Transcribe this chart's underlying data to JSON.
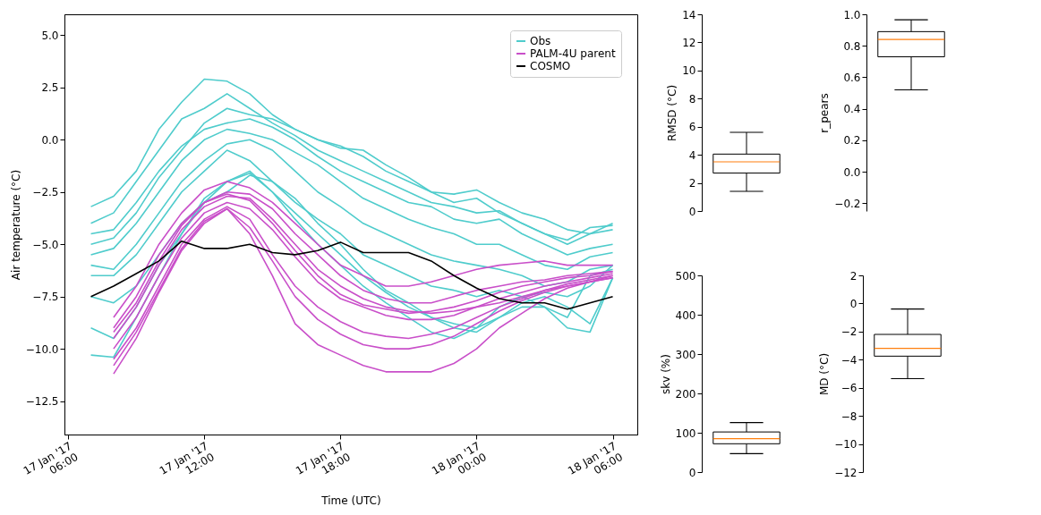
{
  "chart_data": [
    {
      "type": "line",
      "xlabel": "Time (UTC)",
      "ylabel": "Air temperature (°C)",
      "legend": "top right",
      "grid": false,
      "marker": "none",
      "line_style": "solid",
      "xlim": [
        "2017-01-17T05:50",
        "2017-01-18T07:05"
      ],
      "xticks": [
        {
          "value": "2017-01-17T06:00",
          "label": "17 Jan '17\n06:00"
        },
        {
          "value": "2017-01-17T12:00",
          "label": "17 Jan '17\n12:00"
        },
        {
          "value": "2017-01-17T18:00",
          "label": "17 Jan '17\n18:00"
        },
        {
          "value": "2017-01-18T00:00",
          "label": "18 Jan '17\n00:00"
        },
        {
          "value": "2017-01-18T06:00",
          "label": "18 Jan '17\n06:00"
        }
      ],
      "ylim": [
        -14.1,
        6
      ],
      "yticks": [
        {
          "value": 5,
          "label": "5.0"
        },
        {
          "value": 2.5,
          "label": "2.5"
        },
        {
          "value": 0,
          "label": "0.0"
        },
        {
          "value": -2.5,
          "label": "−2.5"
        },
        {
          "value": -5,
          "label": "−5.0"
        },
        {
          "value": -7.5,
          "label": "−7.5"
        },
        {
          "value": -10,
          "label": "−10.0"
        },
        {
          "value": -12.5,
          "label": "−12.5"
        }
      ],
      "x": [
        "2017-01-17T07:00",
        "2017-01-17T08:00",
        "2017-01-17T09:00",
        "2017-01-17T10:00",
        "2017-01-17T11:00",
        "2017-01-17T12:00",
        "2017-01-17T13:00",
        "2017-01-17T14:00",
        "2017-01-17T15:00",
        "2017-01-17T16:00",
        "2017-01-17T17:00",
        "2017-01-17T18:00",
        "2017-01-17T19:00",
        "2017-01-17T20:00",
        "2017-01-17T21:00",
        "2017-01-17T22:00",
        "2017-01-17T23:00",
        "2017-01-18T00:00",
        "2017-01-18T01:00",
        "2017-01-18T02:00",
        "2017-01-18T03:00",
        "2017-01-18T04:00",
        "2017-01-18T05:00",
        "2017-01-18T06:00"
      ],
      "series": [
        {
          "name": "Obs",
          "color": "#4fcccc",
          "values": [
            -3.2,
            -2.7,
            -1.5,
            0.5,
            1.8,
            2.9,
            2.8,
            2.2,
            1.2,
            0.5,
            0,
            -0.4,
            -0.5,
            -1.2,
            -1.8,
            -2.5,
            -2.6,
            -2.4,
            -3.0,
            -3.5,
            -3.8,
            -4.3,
            -4.5,
            -4.3
          ]
        },
        {
          "color": "#4fcccc",
          "values": [
            -4.0,
            -3.5,
            -2.0,
            -0.5,
            1.0,
            1.5,
            2.2,
            1.5,
            0.8,
            0.2,
            -0.5,
            -1.0,
            -1.5,
            -2.0,
            -2.5,
            -3.0,
            -3.2,
            -3.5,
            -3.4,
            -4.0,
            -4.5,
            -4.8,
            -4.2,
            -4.1
          ]
        },
        {
          "color": "#4fcccc",
          "values": [
            -4.5,
            -4.3,
            -3.0,
            -1.5,
            -0.3,
            0.5,
            0.8,
            1.0,
            0.6,
            0,
            -0.8,
            -1.5,
            -2.0,
            -2.5,
            -3.0,
            -3.2,
            -3.8,
            -4.0,
            -3.8,
            -4.5,
            -5.0,
            -5.5,
            -5.2,
            -5.0
          ]
        },
        {
          "color": "#4fcccc",
          "values": [
            -5.5,
            -5.2,
            -4.0,
            -2.5,
            -1.0,
            0,
            0.5,
            0.3,
            0,
            -0.6,
            -1.2,
            -2.0,
            -2.8,
            -3.3,
            -3.8,
            -4.2,
            -4.5,
            -5.0,
            -5.0,
            -5.5,
            -6.0,
            -6.2,
            -5.6,
            -5.4
          ]
        },
        {
          "color": "#4fcccc",
          "values": [
            -6.0,
            -6.2,
            -5.0,
            -3.5,
            -2.0,
            -1.0,
            -0.2,
            0,
            -0.5,
            -1.5,
            -2.5,
            -3.2,
            -4.0,
            -4.5,
            -5.0,
            -5.5,
            -5.8,
            -6.0,
            -6.2,
            -6.5,
            -7.0,
            -6.8,
            -6.2,
            -6.0
          ]
        },
        {
          "color": "#4fcccc",
          "values": [
            -6.5,
            -6.5,
            -5.5,
            -4.0,
            -2.5,
            -1.5,
            -0.5,
            -1.0,
            -2.0,
            -3.0,
            -3.8,
            -4.5,
            -5.5,
            -6.0,
            -6.5,
            -7.0,
            -7.2,
            -7.5,
            -7.2,
            -7.5,
            -8.0,
            -8.5,
            -6.5,
            -6.2
          ]
        },
        {
          "color": "#4fcccc",
          "values": [
            -7.5,
            -7.8,
            -7.0,
            -5.5,
            -4.0,
            -3.0,
            -2.0,
            -1.5,
            -2.5,
            -3.5,
            -4.5,
            -5.5,
            -6.5,
            -7.3,
            -8.0,
            -8.5,
            -8.8,
            -9.0,
            -8.5,
            -8.0,
            -8.0,
            -9.0,
            -9.2,
            -6.6
          ]
        },
        {
          "color": "#4fcccc",
          "values": [
            -9.0,
            -9.5,
            -8.0,
            -6.0,
            -4.5,
            -3.0,
            -2.5,
            -1.7,
            -2.0,
            -2.8,
            -4.0,
            -5.0,
            -6.2,
            -7.2,
            -7.8,
            -8.5,
            -9.0,
            -9.2,
            -8.5,
            -7.8,
            -7.5,
            -8.0,
            -8.8,
            -6.6
          ]
        },
        {
          "color": "#4fcccc",
          "values": [
            -10.3,
            -10.4,
            -8.5,
            -6.5,
            -4.5,
            -2.8,
            -2.0,
            -1.6,
            -2.5,
            -3.8,
            -5.0,
            -6.0,
            -7.0,
            -7.8,
            -8.5,
            -9.2,
            -9.5,
            -9.0,
            -8.0,
            -7.5,
            -7.3,
            -7.5,
            -7.0,
            -6.0
          ]
        },
        {
          "color": "#4fcccc",
          "values": [
            -5.0,
            -4.7,
            -3.5,
            -1.8,
            -0.5,
            0.8,
            1.5,
            1.2,
            1.0,
            0.5,
            0,
            -0.3,
            -0.8,
            -1.5,
            -2.0,
            -2.5,
            -3.0,
            -2.8,
            -3.5,
            -4.0,
            -4.5,
            -5.0,
            -4.5,
            -4.0
          ]
        },
        {
          "name": "PALM-4U parent",
          "color": "#c94fc9",
          "x": [
            "2017-01-17T08:00",
            "2017-01-17T09:00",
            "2017-01-17T10:00",
            "2017-01-17T11:00",
            "2017-01-17T12:00",
            "2017-01-17T13:00",
            "2017-01-17T14:00",
            "2017-01-17T15:00",
            "2017-01-17T16:00",
            "2017-01-17T17:00",
            "2017-01-17T18:00",
            "2017-01-17T19:00",
            "2017-01-17T20:00",
            "2017-01-17T21:00",
            "2017-01-17T22:00",
            "2017-01-17T23:00",
            "2017-01-18T00:00",
            "2017-01-18T01:00",
            "2017-01-18T02:00",
            "2017-01-18T03:00",
            "2017-01-18T04:00",
            "2017-01-18T05:00",
            "2017-01-18T06:00"
          ],
          "values": [
            -8.5,
            -7.0,
            -5.0,
            -3.5,
            -2.4,
            -2.0,
            -2.3,
            -3.0,
            -4.0,
            -5.0,
            -6.0,
            -6.5,
            -7.0,
            -7.0,
            -6.8,
            -6.5,
            -6.2,
            -6.0,
            -5.9,
            -5.8,
            -6.0,
            -6.0,
            -6.0
          ]
        },
        {
          "color": "#c94fc9",
          "x": [
            "2017-01-17T08:00",
            "2017-01-17T09:00",
            "2017-01-17T10:00",
            "2017-01-17T11:00",
            "2017-01-17T12:00",
            "2017-01-17T13:00",
            "2017-01-17T14:00",
            "2017-01-17T15:00",
            "2017-01-17T16:00",
            "2017-01-17T17:00",
            "2017-01-17T18:00",
            "2017-01-17T19:00",
            "2017-01-17T20:00",
            "2017-01-17T21:00",
            "2017-01-17T22:00",
            "2017-01-17T23:00",
            "2017-01-18T00:00",
            "2017-01-18T01:00",
            "2017-01-18T02:00",
            "2017-01-18T03:00",
            "2017-01-18T04:00",
            "2017-01-18T05:00",
            "2017-01-18T06:00"
          ],
          "values": [
            -9.0,
            -7.5,
            -5.5,
            -4.0,
            -3.0,
            -2.5,
            -2.6,
            -3.3,
            -4.5,
            -5.5,
            -6.5,
            -7.2,
            -7.6,
            -7.8,
            -7.8,
            -7.5,
            -7.2,
            -7.0,
            -6.8,
            -6.7,
            -6.5,
            -6.4,
            -6.3
          ]
        },
        {
          "color": "#c94fc9",
          "x": [
            "2017-01-17T08:00",
            "2017-01-17T09:00",
            "2017-01-17T10:00",
            "2017-01-17T11:00",
            "2017-01-17T12:00",
            "2017-01-17T13:00",
            "2017-01-17T14:00",
            "2017-01-17T15:00",
            "2017-01-17T16:00",
            "2017-01-17T17:00",
            "2017-01-17T18:00",
            "2017-01-17T19:00",
            "2017-01-17T20:00",
            "2017-01-17T21:00",
            "2017-01-17T22:00",
            "2017-01-17T23:00",
            "2017-01-18T00:00",
            "2017-01-18T01:00",
            "2017-01-18T02:00",
            "2017-01-18T03:00",
            "2017-01-18T04:00",
            "2017-01-18T05:00",
            "2017-01-18T06:00"
          ],
          "values": [
            -9.5,
            -8.0,
            -6.0,
            -4.3,
            -3.2,
            -2.7,
            -2.8,
            -3.8,
            -5.0,
            -6.2,
            -7.0,
            -7.6,
            -8.0,
            -8.2,
            -8.3,
            -8.2,
            -8.0,
            -7.8,
            -7.5,
            -7.2,
            -7.0,
            -6.8,
            -6.5
          ]
        },
        {
          "color": "#c94fc9",
          "x": [
            "2017-01-17T08:00",
            "2017-01-17T09:00",
            "2017-01-17T10:00",
            "2017-01-17T11:00",
            "2017-01-17T12:00",
            "2017-01-17T13:00",
            "2017-01-17T14:00",
            "2017-01-17T15:00",
            "2017-01-17T16:00",
            "2017-01-17T17:00",
            "2017-01-17T18:00",
            "2017-01-17T19:00",
            "2017-01-17T20:00",
            "2017-01-17T21:00",
            "2017-01-17T22:00",
            "2017-01-17T23:00",
            "2017-01-18T00:00",
            "2017-01-18T01:00",
            "2017-01-18T02:00",
            "2017-01-18T03:00",
            "2017-01-18T04:00",
            "2017-01-18T05:00",
            "2017-01-18T06:00"
          ],
          "values": [
            -10.0,
            -8.5,
            -6.5,
            -4.7,
            -3.5,
            -3.0,
            -3.3,
            -4.3,
            -5.6,
            -6.8,
            -7.6,
            -8.0,
            -8.4,
            -8.6,
            -8.6,
            -8.4,
            -8.0,
            -7.6,
            -7.3,
            -7.0,
            -6.8,
            -6.6,
            -6.4
          ]
        },
        {
          "color": "#c94fc9",
          "x": [
            "2017-01-17T08:00",
            "2017-01-17T09:00",
            "2017-01-17T10:00",
            "2017-01-17T11:00",
            "2017-01-17T12:00",
            "2017-01-17T13:00",
            "2017-01-17T14:00",
            "2017-01-17T15:00",
            "2017-01-17T16:00",
            "2017-01-17T17:00",
            "2017-01-17T18:00",
            "2017-01-17T19:00",
            "2017-01-17T20:00",
            "2017-01-17T21:00",
            "2017-01-17T22:00",
            "2017-01-17T23:00",
            "2017-01-18T00:00",
            "2017-01-18T01:00",
            "2017-01-18T02:00",
            "2017-01-18T03:00",
            "2017-01-18T04:00",
            "2017-01-18T05:00",
            "2017-01-18T06:00"
          ],
          "values": [
            -10.5,
            -9.0,
            -7.0,
            -5.0,
            -3.8,
            -3.2,
            -3.8,
            -5.5,
            -7.0,
            -8.0,
            -8.7,
            -9.2,
            -9.4,
            -9.5,
            -9.3,
            -9.0,
            -8.5,
            -8.0,
            -7.6,
            -7.2,
            -6.9,
            -6.7,
            -6.5
          ]
        },
        {
          "color": "#c94fc9",
          "x": [
            "2017-01-17T08:00",
            "2017-01-17T09:00",
            "2017-01-17T10:00",
            "2017-01-17T11:00",
            "2017-01-17T12:00",
            "2017-01-17T13:00",
            "2017-01-17T14:00",
            "2017-01-17T15:00",
            "2017-01-17T16:00",
            "2017-01-17T17:00",
            "2017-01-17T18:00",
            "2017-01-17T19:00",
            "2017-01-17T20:00",
            "2017-01-17T21:00",
            "2017-01-17T22:00",
            "2017-01-17T23:00",
            "2017-01-18T00:00",
            "2017-01-18T01:00",
            "2017-01-18T02:00",
            "2017-01-18T03:00",
            "2017-01-18T04:00",
            "2017-01-18T05:00",
            "2017-01-18T06:00"
          ],
          "values": [
            -11.2,
            -9.5,
            -7.3,
            -5.3,
            -4.0,
            -3.3,
            -4.5,
            -6.5,
            -8.8,
            -9.8,
            -10.3,
            -10.8,
            -11.1,
            -11.1,
            -11.1,
            -10.7,
            -10.0,
            -9.0,
            -8.3,
            -7.6,
            -7.1,
            -6.8,
            -6.6
          ]
        },
        {
          "color": "#c94fc9",
          "x": [
            "2017-01-17T08:00",
            "2017-01-17T09:00",
            "2017-01-17T10:00",
            "2017-01-17T11:00",
            "2017-01-17T12:00",
            "2017-01-17T13:00",
            "2017-01-17T14:00",
            "2017-01-17T15:00",
            "2017-01-17T16:00",
            "2017-01-17T17:00",
            "2017-01-17T18:00",
            "2017-01-17T19:00",
            "2017-01-17T20:00",
            "2017-01-17T21:00",
            "2017-01-17T22:00",
            "2017-01-17T23:00",
            "2017-01-18T00:00",
            "2017-01-18T01:00",
            "2017-01-18T02:00",
            "2017-01-18T03:00",
            "2017-01-18T04:00",
            "2017-01-18T05:00",
            "2017-01-18T06:00"
          ],
          "values": [
            -9.2,
            -7.8,
            -5.8,
            -4.1,
            -3.0,
            -2.6,
            -2.9,
            -4.0,
            -5.3,
            -6.5,
            -7.4,
            -7.9,
            -8.1,
            -8.3,
            -8.2,
            -8.0,
            -7.7,
            -7.3,
            -7.0,
            -6.8,
            -6.6,
            -6.5,
            -6.3
          ]
        },
        {
          "color": "#c94fc9",
          "x": [
            "2017-01-17T08:00",
            "2017-01-17T09:00",
            "2017-01-17T10:00",
            "2017-01-17T11:00",
            "2017-01-17T12:00",
            "2017-01-17T13:00",
            "2017-01-17T14:00",
            "2017-01-17T15:00",
            "2017-01-17T16:00",
            "2017-01-17T17:00",
            "2017-01-17T18:00",
            "2017-01-17T19:00",
            "2017-01-17T20:00",
            "2017-01-17T21:00",
            "2017-01-17T22:00",
            "2017-01-17T23:00",
            "2017-01-18T00:00",
            "2017-01-18T01:00",
            "2017-01-18T02:00",
            "2017-01-18T03:00",
            "2017-01-18T04:00",
            "2017-01-18T05:00",
            "2017-01-18T06:00"
          ],
          "values": [
            -10.8,
            -9.2,
            -7.2,
            -5.2,
            -3.9,
            -3.3,
            -4.2,
            -5.8,
            -7.5,
            -8.6,
            -9.3,
            -9.8,
            -10.0,
            -10.0,
            -9.8,
            -9.4,
            -8.8,
            -8.2,
            -7.7,
            -7.3,
            -7.0,
            -6.8,
            -6.6
          ]
        },
        {
          "name": "COSMO",
          "color": "#000000",
          "values": [
            -7.5,
            -7.0,
            -6.4,
            -5.8,
            -4.85,
            -5.2,
            -5.2,
            -5.0,
            -5.4,
            -5.5,
            -5.3,
            -4.9,
            -5.4,
            -5.4,
            -5.4,
            -5.8,
            -6.5,
            -7.1,
            -7.6,
            -7.8,
            -7.8,
            -8.1,
            -7.8,
            -7.5
          ]
        }
      ]
    },
    {
      "type": "box",
      "ylabel": "RMSD (°C)",
      "tick_labels": "y",
      "categories": [
        null
      ],
      "ylim": [
        0,
        14
      ],
      "yticks": [
        0,
        2,
        4,
        6,
        8,
        10,
        12,
        14
      ],
      "boxes": [
        {
          "low": 1.4,
          "q1": 2.7,
          "median": 3.5,
          "q3": 4.05,
          "high": 5.6
        }
      ]
    },
    {
      "type": "box",
      "ylabel": "r_pears",
      "tick_labels": "y",
      "categories": [
        null
      ],
      "ylim": [
        -0.25,
        1.0
      ],
      "yticks": [
        {
          "value": -0.2,
          "label": "−0.2"
        },
        {
          "value": 0,
          "label": "0.0"
        },
        {
          "value": 0.2,
          "label": "0.2"
        },
        {
          "value": 0.4,
          "label": "0.4"
        },
        {
          "value": 0.6,
          "label": "0.6"
        },
        {
          "value": 0.8,
          "label": "0.8"
        },
        {
          "value": 1.0,
          "label": "1.0"
        }
      ],
      "boxes": [
        {
          "low": 0.52,
          "q1": 0.73,
          "median": 0.84,
          "q3": 0.89,
          "high": 0.965
        }
      ]
    },
    {
      "type": "box",
      "ylabel": "skv (%)",
      "tick_labels": "y",
      "categories": [
        null
      ],
      "ylim": [
        0,
        500
      ],
      "yticks": [
        0,
        100,
        200,
        300,
        400,
        500
      ],
      "boxes": [
        {
          "low": 47,
          "q1": 72,
          "median": 85,
          "q3": 102,
          "high": 126
        }
      ]
    },
    {
      "type": "box",
      "ylabel": "MD (°C)",
      "tick_labels": "y",
      "categories": [
        null
      ],
      "ylim": [
        -12,
        2
      ],
      "yticks": [
        2,
        0,
        {
          "value": -2,
          "label": "−2"
        },
        {
          "value": -4,
          "label": "−4"
        },
        {
          "value": -6,
          "label": "−6"
        },
        {
          "value": -8,
          "label": "−8"
        },
        {
          "value": -10,
          "label": "−10"
        },
        {
          "value": -12,
          "label": "−12"
        }
      ],
      "boxes": [
        {
          "low": -5.35,
          "q1": -3.75,
          "median": -3.2,
          "q3": -2.2,
          "high": -0.4
        }
      ]
    }
  ]
}
